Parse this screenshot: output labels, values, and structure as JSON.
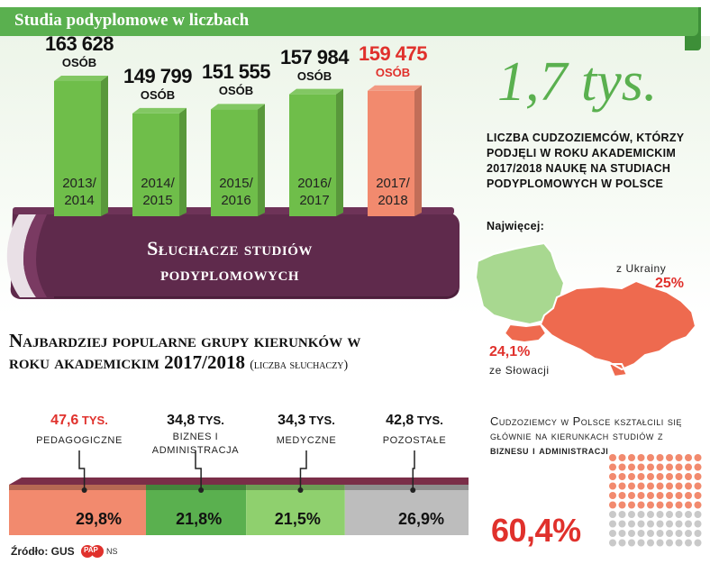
{
  "banner": {
    "title": "Studia podyplomowe w liczbach"
  },
  "chart_data": [
    {
      "type": "bar",
      "title": "Słuchacze studiów podyplomowych",
      "categories": [
        "2013/ 2014",
        "2014/ 2015",
        "2015/ 2016",
        "2016/ 2017",
        "2017/ 2018"
      ],
      "values": [
        163628,
        149799,
        151555,
        157984,
        159475
      ],
      "value_labels": [
        "163 628",
        "149 799",
        "151 555",
        "157 984",
        "159 475"
      ],
      "unit_label": "OSÓB",
      "highlight_index": 4,
      "colors": {
        "bar": "#6fbe4a",
        "bar_highlight": "#f28a6e",
        "label_highlight": "#e0312c"
      }
    },
    {
      "type": "bar",
      "title": "Najbardziej popularne grupy kierunków w roku akademickim 2017/2018",
      "subtitle": "(liczba słuchaczy)",
      "orientation": "stacked-horizontal",
      "categories": [
        "pedagogiczne",
        "biznes i administracja",
        "medyczne",
        "pozostałe"
      ],
      "values": [
        47.6,
        34.8,
        34.3,
        42.8
      ],
      "value_labels": [
        "47,6",
        "34,8",
        "34,3",
        "42,8"
      ],
      "value_unit": "TYS.",
      "shares": [
        29.8,
        21.8,
        21.5,
        26.9
      ],
      "share_labels": [
        "29,8%",
        "21,8%",
        "21,5%",
        "26,9%"
      ],
      "colors": [
        "#f28a6e",
        "#5ab04f",
        "#8fd06e",
        "#bdbdbd"
      ]
    }
  ],
  "foreigners": {
    "count": "1,7 tys.",
    "description": "liczba cudzoziemców, którzy podjęli w roku akademickim 2017/2018 naukę na studiach podyplomowych w Polsce",
    "most_label": "Najwięcej:",
    "origins": [
      {
        "from": "z Ukrainy",
        "share": "25%",
        "value": 25
      },
      {
        "from": "ze Słowacji",
        "share": "24,1%",
        "value": 24.1
      }
    ],
    "colors": {
      "poland": "#a8d890",
      "ukraine": "#ee6a4f"
    }
  },
  "business": {
    "text1": "Cudzoziemcy w Polsce kształcili się głównie na kierunkach studiów z",
    "text_bold": "biznesu i administracji",
    "share": "60,4%",
    "share_value": 60.4
  },
  "footer": {
    "source": "Źródło: GUS",
    "logo": "PAP",
    "author": "NS"
  }
}
